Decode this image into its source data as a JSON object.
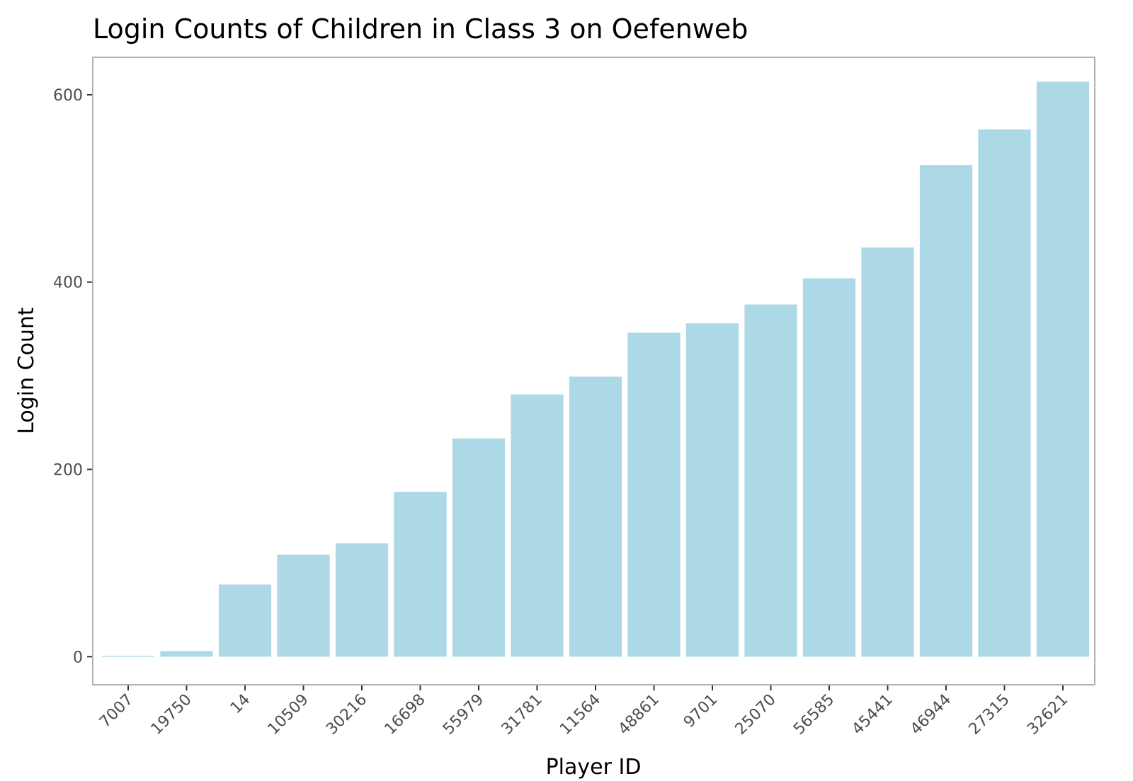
{
  "chart_data": {
    "type": "bar",
    "title": "Login Counts of Children in Class 3 on Oefenweb",
    "xlabel": "Player ID",
    "ylabel": "Login Count",
    "categories": [
      "7007",
      "19750",
      "14",
      "10509",
      "30216",
      "16698",
      "55979",
      "31781",
      "11564",
      "48861",
      "9701",
      "25070",
      "56585",
      "45441",
      "46944",
      "27315",
      "32621"
    ],
    "values": [
      1,
      6,
      77,
      109,
      121,
      176,
      233,
      280,
      299,
      346,
      356,
      376,
      404,
      437,
      525,
      563,
      614
    ],
    "ylim": [
      -30,
      640
    ],
    "yticks": [
      0,
      200,
      400,
      600
    ],
    "ytick_labels": [
      "0",
      "200",
      "400",
      "600"
    ],
    "grid": false,
    "legend": "none",
    "colors": {
      "bar": "#add8e6",
      "panel_border": "#b3b3b3",
      "tick": "#333333",
      "tick_label": "#4d4d4d"
    }
  }
}
